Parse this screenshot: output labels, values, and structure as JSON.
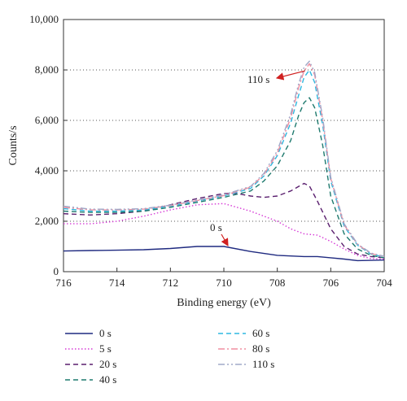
{
  "chart_data": {
    "type": "line",
    "xlabel": "Binding energy (eV)",
    "ylabel": "Counts/s",
    "xlim": [
      716,
      704
    ],
    "ylim": [
      0,
      10000
    ],
    "x_ticks": [
      716,
      714,
      712,
      710,
      708,
      706,
      704
    ],
    "x_tick_labels": [
      "716",
      "714",
      "712",
      "710",
      "708",
      "706",
      "704"
    ],
    "y_ticks": [
      0,
      2000,
      4000,
      6000,
      8000,
      10000
    ],
    "y_tick_labels": [
      "0",
      "2,000",
      "4,000",
      "6,000",
      "8,000",
      "10,000"
    ],
    "grid": "horizontal dotted",
    "legend_position": "bottom",
    "annotations": [
      {
        "text": "110 s",
        "x": 706.9,
        "y": 7900
      },
      {
        "text": "0 s",
        "x": 709.8,
        "y": 1050
      }
    ],
    "series": [
      {
        "name": "0 s",
        "color": "#1f2a80",
        "dash": "solid",
        "x": [
          716,
          715,
          714,
          713,
          712,
          711,
          710,
          709,
          708,
          707,
          706.5,
          706,
          705.5,
          705,
          704.5,
          704
        ],
        "y": [
          820,
          840,
          850,
          870,
          920,
          1000,
          1000,
          800,
          650,
          600,
          600,
          550,
          500,
          440,
          450,
          460
        ]
      },
      {
        "name": "5 s",
        "color": "#d63ad6",
        "dash": "dotted",
        "x": [
          716,
          715,
          714,
          713,
          712,
          711,
          710,
          709,
          708,
          707.5,
          707,
          706.5,
          706,
          705.5,
          705,
          704.5,
          704
        ],
        "y": [
          1900,
          1900,
          2000,
          2200,
          2450,
          2650,
          2700,
          2400,
          2000,
          1700,
          1500,
          1450,
          1200,
          900,
          650,
          520,
          500
        ]
      },
      {
        "name": "20 s",
        "color": "#5a1f6e",
        "dash": "dash",
        "x": [
          716,
          715,
          714,
          713,
          712,
          711,
          710,
          709.5,
          709,
          708.5,
          708,
          707.5,
          707,
          706.8,
          706.5,
          706,
          705.5,
          705,
          704.5,
          704
        ],
        "y": [
          2300,
          2250,
          2300,
          2400,
          2650,
          2900,
          3100,
          3100,
          3000,
          2950,
          3000,
          3200,
          3500,
          3400,
          2800,
          1700,
          1000,
          700,
          600,
          550
        ]
      },
      {
        "name": "40 s",
        "color": "#1f7a6e",
        "dash": "dash",
        "x": [
          716,
          715,
          714,
          713,
          712,
          711,
          710,
          709,
          708.5,
          708,
          707.5,
          707.2,
          707,
          706.8,
          706.6,
          706.3,
          706,
          705.5,
          705,
          704.5,
          704
        ],
        "y": [
          2400,
          2350,
          2350,
          2400,
          2550,
          2750,
          2950,
          3200,
          3600,
          4200,
          5200,
          6200,
          6700,
          6900,
          6500,
          5000,
          3000,
          1500,
          900,
          650,
          550
        ]
      },
      {
        "name": "60 s",
        "color": "#2fb8e0",
        "dash": "dash",
        "x": [
          716,
          715,
          714,
          713,
          712,
          711,
          710,
          709,
          708.5,
          708,
          707.5,
          707.2,
          707,
          706.8,
          706.6,
          706.3,
          706,
          705.5,
          705,
          704.5,
          704
        ],
        "y": [
          2500,
          2400,
          2400,
          2450,
          2600,
          2800,
          3000,
          3300,
          3800,
          4600,
          5900,
          7000,
          7700,
          8000,
          7500,
          5800,
          3600,
          1800,
          1050,
          700,
          580
        ]
      },
      {
        "name": "80 s",
        "color": "#f08fa0",
        "dash": "dashdot",
        "x": [
          716,
          715,
          714,
          713,
          712,
          711,
          710,
          709,
          708.5,
          708,
          707.5,
          707.2,
          707,
          706.8,
          706.6,
          706.3,
          706,
          705.5,
          705,
          704.5,
          704
        ],
        "y": [
          2550,
          2450,
          2450,
          2480,
          2620,
          2820,
          3020,
          3350,
          3850,
          4700,
          6100,
          7300,
          7950,
          8250,
          7800,
          6000,
          3700,
          1850,
          1080,
          720,
          600
        ]
      },
      {
        "name": "110 s",
        "color": "#a0a8c8",
        "dash": "dashdotdot",
        "x": [
          716,
          715,
          714,
          713,
          712,
          711,
          710,
          709,
          708.5,
          708,
          707.5,
          707.2,
          707,
          706.8,
          706.6,
          706.3,
          706,
          705.5,
          705,
          704.5,
          704
        ],
        "y": [
          2600,
          2480,
          2470,
          2500,
          2640,
          2840,
          3050,
          3380,
          3900,
          4800,
          6250,
          7450,
          8100,
          8350,
          7900,
          6100,
          3750,
          1900,
          1100,
          740,
          610
        ]
      }
    ]
  }
}
